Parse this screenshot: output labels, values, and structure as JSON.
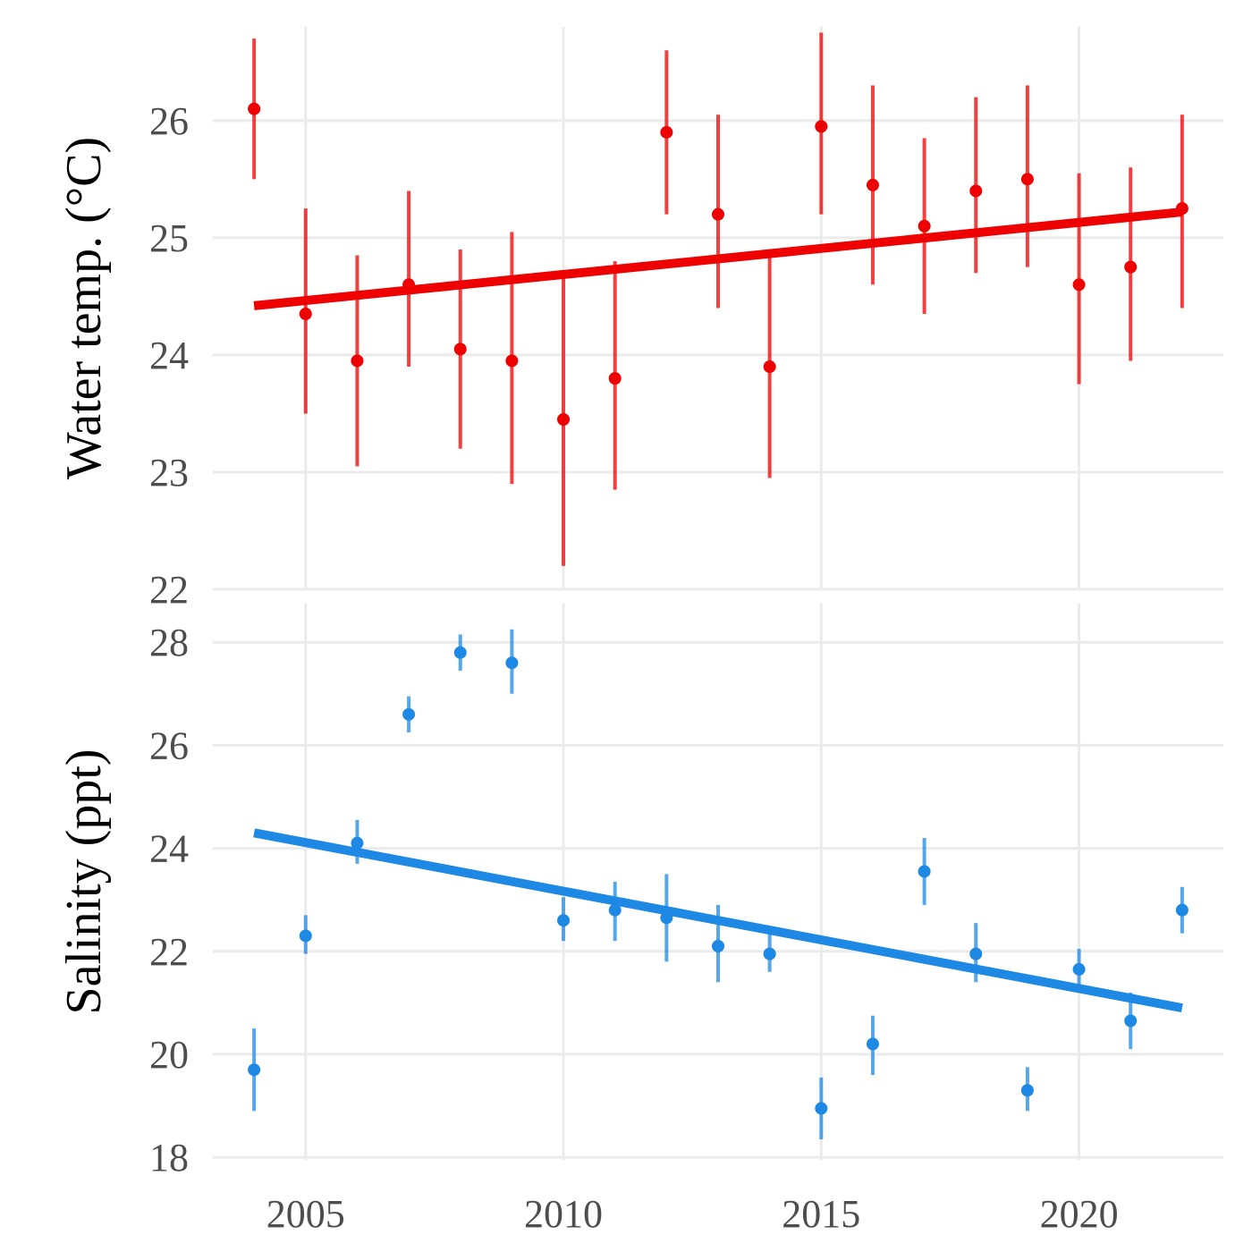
{
  "chart_data": [
    {
      "type": "scatter",
      "ylabel": "Water temp. (°C)",
      "xlim": [
        2003.2,
        2022.8
      ],
      "ylim": [
        22,
        26.8
      ],
      "x_ticks": [
        2005,
        2010,
        2015,
        2020
      ],
      "y_ticks": [
        22,
        23,
        24,
        25,
        26
      ],
      "grid": true,
      "color": "#ee0000",
      "points": [
        {
          "x": 2004,
          "y": 26.1,
          "lo": 25.5,
          "hi": 26.7
        },
        {
          "x": 2005,
          "y": 24.35,
          "lo": 23.5,
          "hi": 25.25
        },
        {
          "x": 2006,
          "y": 23.95,
          "lo": 23.05,
          "hi": 24.85
        },
        {
          "x": 2007,
          "y": 24.6,
          "lo": 23.9,
          "hi": 25.4
        },
        {
          "x": 2008,
          "y": 24.05,
          "lo": 23.2,
          "hi": 24.9
        },
        {
          "x": 2009,
          "y": 23.95,
          "lo": 22.9,
          "hi": 25.05
        },
        {
          "x": 2010,
          "y": 23.45,
          "lo": 22.2,
          "hi": 24.7
        },
        {
          "x": 2011,
          "y": 23.8,
          "lo": 22.85,
          "hi": 24.8
        },
        {
          "x": 2012,
          "y": 25.9,
          "lo": 25.2,
          "hi": 26.6
        },
        {
          "x": 2013,
          "y": 25.2,
          "lo": 24.4,
          "hi": 26.05
        },
        {
          "x": 2014,
          "y": 23.9,
          "lo": 22.95,
          "hi": 24.85
        },
        {
          "x": 2015,
          "y": 25.95,
          "lo": 25.2,
          "hi": 26.75
        },
        {
          "x": 2016,
          "y": 25.45,
          "lo": 24.6,
          "hi": 26.3
        },
        {
          "x": 2017,
          "y": 25.1,
          "lo": 24.35,
          "hi": 25.85
        },
        {
          "x": 2018,
          "y": 25.4,
          "lo": 24.7,
          "hi": 26.2
        },
        {
          "x": 2019,
          "y": 25.5,
          "lo": 24.75,
          "hi": 26.3
        },
        {
          "x": 2020,
          "y": 24.6,
          "lo": 23.75,
          "hi": 25.55
        },
        {
          "x": 2021,
          "y": 24.75,
          "lo": 23.95,
          "hi": 25.6
        },
        {
          "x": 2022,
          "y": 25.25,
          "lo": 24.4,
          "hi": 26.05
        }
      ],
      "trend": {
        "x": [
          2004,
          2022
        ],
        "y": [
          24.42,
          25.22
        ]
      }
    },
    {
      "type": "scatter",
      "ylabel": "Salinity (ppt)",
      "xlim": [
        2003.2,
        2022.8
      ],
      "ylim": [
        17.95,
        28.75
      ],
      "x_ticks": [
        2005,
        2010,
        2015,
        2020
      ],
      "y_ticks": [
        18,
        20,
        22,
        24,
        26,
        28
      ],
      "grid": true,
      "color": "#1e88e5",
      "points": [
        {
          "x": 2004,
          "y": 19.7,
          "lo": 18.9,
          "hi": 20.5
        },
        {
          "x": 2005,
          "y": 22.3,
          "lo": 21.95,
          "hi": 22.7
        },
        {
          "x": 2006,
          "y": 24.1,
          "lo": 23.7,
          "hi": 24.55
        },
        {
          "x": 2007,
          "y": 26.6,
          "lo": 26.25,
          "hi": 26.95
        },
        {
          "x": 2008,
          "y": 27.8,
          "lo": 27.45,
          "hi": 28.15
        },
        {
          "x": 2009,
          "y": 27.6,
          "lo": 27.0,
          "hi": 28.25
        },
        {
          "x": 2010,
          "y": 22.6,
          "lo": 22.2,
          "hi": 23.05
        },
        {
          "x": 2011,
          "y": 22.8,
          "lo": 22.2,
          "hi": 23.35
        },
        {
          "x": 2012,
          "y": 22.65,
          "lo": 21.8,
          "hi": 23.5
        },
        {
          "x": 2013,
          "y": 22.1,
          "lo": 21.4,
          "hi": 22.9
        },
        {
          "x": 2014,
          "y": 21.95,
          "lo": 21.6,
          "hi": 22.35
        },
        {
          "x": 2015,
          "y": 18.95,
          "lo": 18.35,
          "hi": 19.55
        },
        {
          "x": 2016,
          "y": 20.2,
          "lo": 19.6,
          "hi": 20.75
        },
        {
          "x": 2017,
          "y": 23.55,
          "lo": 22.9,
          "hi": 24.2
        },
        {
          "x": 2018,
          "y": 21.95,
          "lo": 21.4,
          "hi": 22.55
        },
        {
          "x": 2019,
          "y": 19.3,
          "lo": 18.9,
          "hi": 19.75
        },
        {
          "x": 2020,
          "y": 21.65,
          "lo": 21.25,
          "hi": 22.05
        },
        {
          "x": 2021,
          "y": 20.65,
          "lo": 20.1,
          "hi": 21.2
        },
        {
          "x": 2022,
          "y": 22.8,
          "lo": 22.35,
          "hi": 23.25
        }
      ],
      "trend": {
        "x": [
          2004,
          2022
        ],
        "y": [
          24.3,
          20.9
        ]
      }
    }
  ]
}
